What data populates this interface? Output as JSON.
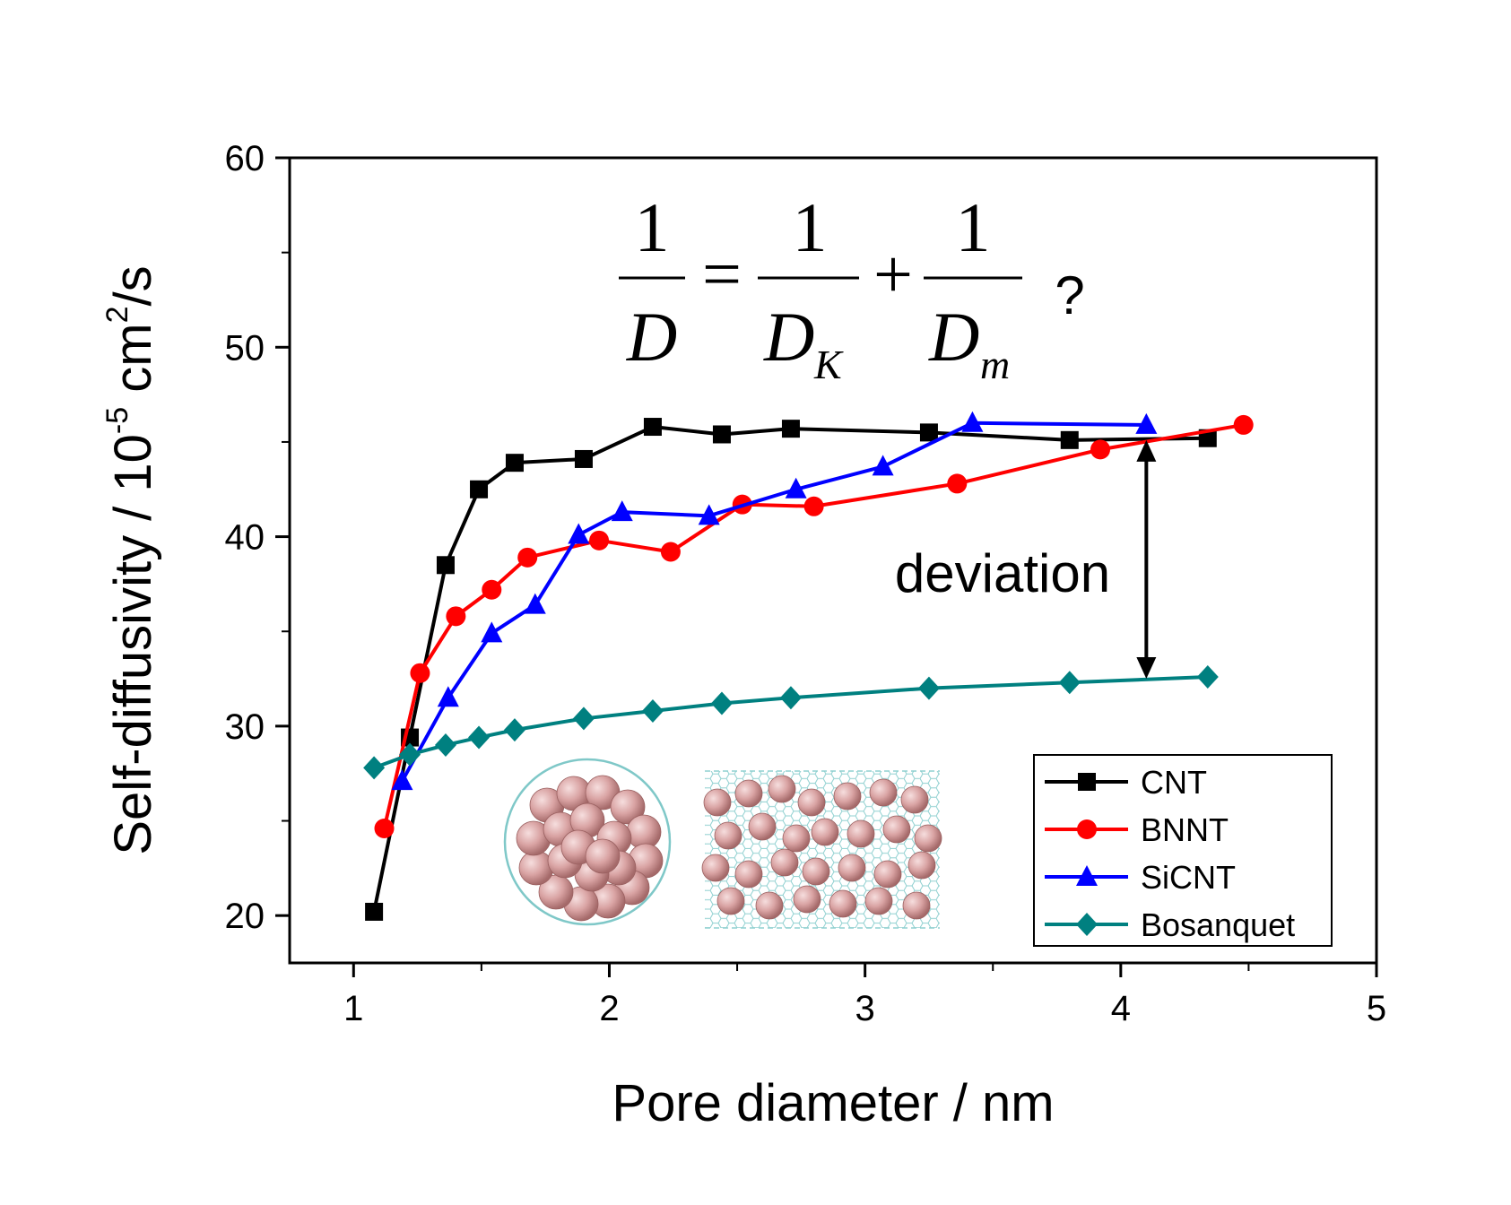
{
  "chart_data": {
    "type": "line",
    "title": "",
    "xlabel": "Pore diameter / nm",
    "ylabel": {
      "prefix": "Self-diffusivity / 10",
      "exp1": "-5",
      "mid": " cm",
      "exp2": "2",
      "suffix": "/s"
    },
    "xlim": [
      0.75,
      5.0
    ],
    "ylim": [
      17.5,
      60
    ],
    "xticks": [
      1,
      2,
      3,
      4,
      5
    ],
    "yticks": [
      20,
      30,
      40,
      50,
      60
    ],
    "grid": false,
    "legend_position": "bottom-right",
    "series": [
      {
        "name": "CNT",
        "color": "#000000",
        "marker": "square",
        "x": [
          1.08,
          1.22,
          1.36,
          1.49,
          1.63,
          1.9,
          2.17,
          2.44,
          2.71,
          3.25,
          3.8,
          4.34
        ],
        "y": [
          20.2,
          29.4,
          38.5,
          42.5,
          43.9,
          44.1,
          45.8,
          45.4,
          45.7,
          45.5,
          45.1,
          45.2
        ]
      },
      {
        "name": "BNNT",
        "color": "#ff0000",
        "marker": "circle",
        "x": [
          1.12,
          1.26,
          1.4,
          1.54,
          1.68,
          1.96,
          2.24,
          2.52,
          2.8,
          3.36,
          3.92,
          4.48
        ],
        "y": [
          24.6,
          32.8,
          35.8,
          37.2,
          38.9,
          39.8,
          39.2,
          41.7,
          41.6,
          42.8,
          44.6,
          45.9
        ]
      },
      {
        "name": "SiCNT",
        "color": "#0000ff",
        "marker": "triangle",
        "x": [
          1.19,
          1.37,
          1.54,
          1.71,
          1.88,
          2.05,
          2.39,
          2.73,
          3.07,
          3.42,
          4.1
        ],
        "y": [
          27.1,
          31.5,
          34.9,
          36.4,
          40.1,
          41.3,
          41.1,
          42.5,
          43.7,
          46.0,
          45.9
        ]
      },
      {
        "name": "Bosanquet",
        "color": "#008080",
        "marker": "diamond",
        "x": [
          1.08,
          1.22,
          1.36,
          1.49,
          1.63,
          1.9,
          2.17,
          2.44,
          2.71,
          3.25,
          3.8,
          4.34
        ],
        "y": [
          27.8,
          28.5,
          29.0,
          29.4,
          29.8,
          30.4,
          30.8,
          31.2,
          31.5,
          32.0,
          32.3,
          32.6
        ]
      }
    ],
    "annotations": {
      "deviation_label": "deviation",
      "arrow": {
        "x": 4.1,
        "y_top": 45.1,
        "y_bottom": 32.5
      },
      "equation": {
        "lhs_num": "1",
        "lhs_den": "D",
        "eq_sign": "=",
        "t1_num": "1",
        "t1_den": "D",
        "t1_sub": "K",
        "plus": "+",
        "t2_num": "1",
        "t2_den": "D",
        "t2_sub": "m",
        "question": "?"
      }
    }
  }
}
